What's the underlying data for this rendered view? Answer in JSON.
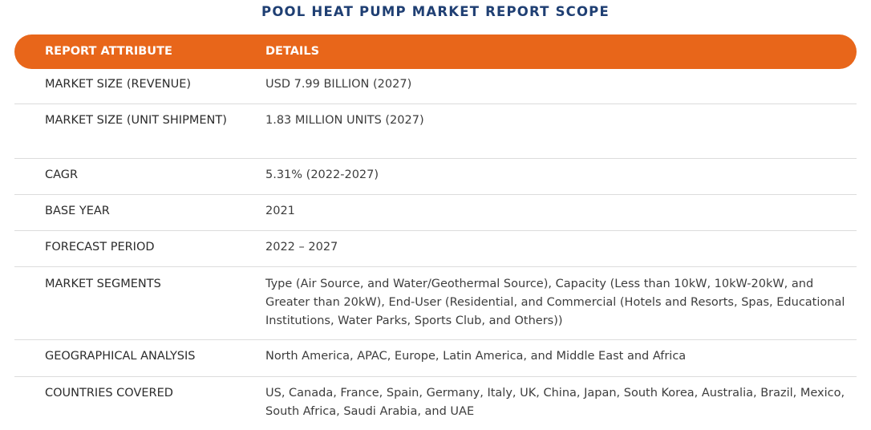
{
  "title": "POOL HEAT PUMP MARKET REPORT SCOPE",
  "table": {
    "header": {
      "attribute": "REPORT ATTRIBUTE",
      "details": "DETAILS"
    },
    "rows": [
      {
        "attribute": "MARKET SIZE (REVENUE)",
        "details": "USD 7.99 BILLION (2027)"
      },
      {
        "attribute": "MARKET SIZE (UNIT SHIPMENT)",
        "details": "1.83 MILLION UNITS (2027)"
      },
      {
        "attribute": "CAGR",
        "details": "5.31% (2022-2027)"
      },
      {
        "attribute": "BASE YEAR",
        "details": "2021"
      },
      {
        "attribute": "FORECAST PERIOD",
        "details": "2022 – 2027"
      },
      {
        "attribute": "MARKET SEGMENTS",
        "details": "Type (Air Source, and Water/Geothermal Source), Capacity (Less than 10kW, 10kW-20kW, and Greater than 20kW), End-User (Residential, and Commercial (Hotels and Resorts, Spas, Educational Institutions, Water Parks, Sports Club, and Others))"
      },
      {
        "attribute": "GEOGRAPHICAL ANALYSIS",
        "details": "North America, APAC, Europe, Latin America, and Middle East and Africa"
      },
      {
        "attribute": "COUNTRIES COVERED",
        "details": "US, Canada, France, Spain, Germany, Italy, UK, China, Japan, South Korea, Australia, Brazil, Mexico, South Africa, Saudi Arabia, and UAE"
      }
    ]
  },
  "colors": {
    "title": "#1f3f73",
    "header_background": "#e8661a",
    "header_text": "#ffffff",
    "divider": "#dcdcdc"
  }
}
